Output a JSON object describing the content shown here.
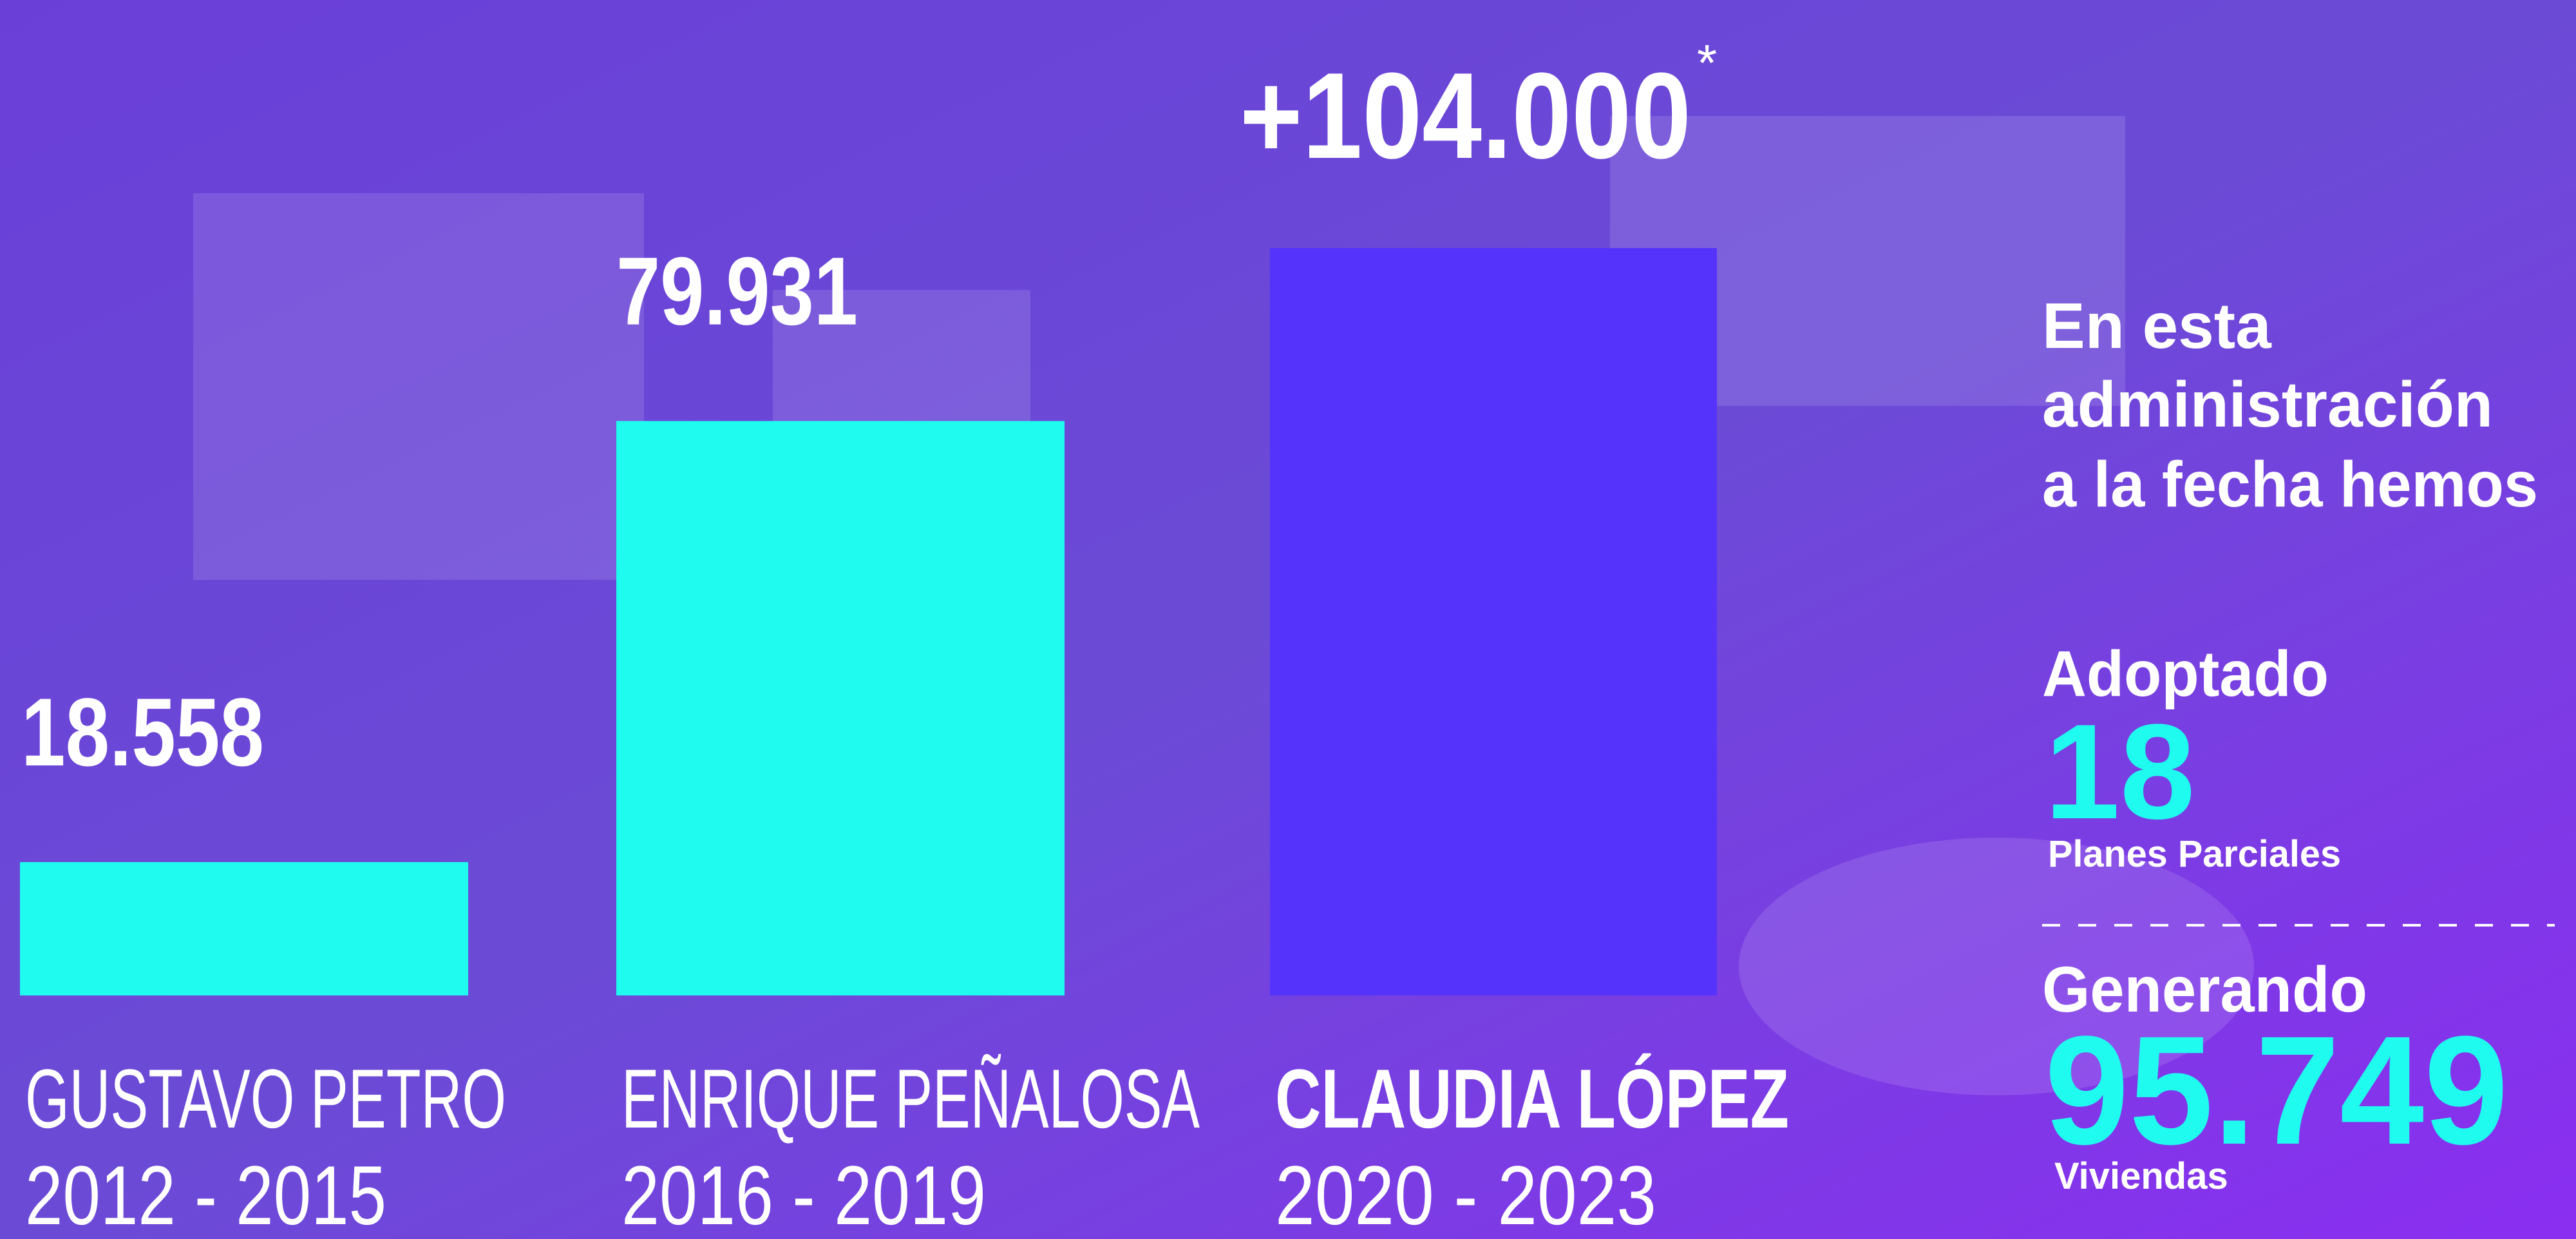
{
  "chart_data": {
    "type": "bar",
    "categories": [
      "GUSTAVO PETRO",
      "ENRIQUE PEÑALOSA",
      "CLAUDIA LÓPEZ"
    ],
    "periods": [
      "2012 - 2015",
      "2016 - 2019",
      "2020 - 2023"
    ],
    "values": [
      18558,
      79931,
      104000
    ],
    "value_labels": [
      "18.558",
      "79.931",
      "+104.000"
    ],
    "colors": [
      "#1ffbee",
      "#1ffbee",
      "#5533fb"
    ],
    "note_mark": "*"
  },
  "panel": {
    "intro": [
      "En esta",
      "administración",
      "a la fecha hemos"
    ],
    "adopted_label": "Adoptado",
    "adopted_value": 18,
    "adopted_unit": "Planes Parciales",
    "generating_label": "Generando",
    "generating_value": "95.749",
    "generating_unit": "Viviendas"
  }
}
